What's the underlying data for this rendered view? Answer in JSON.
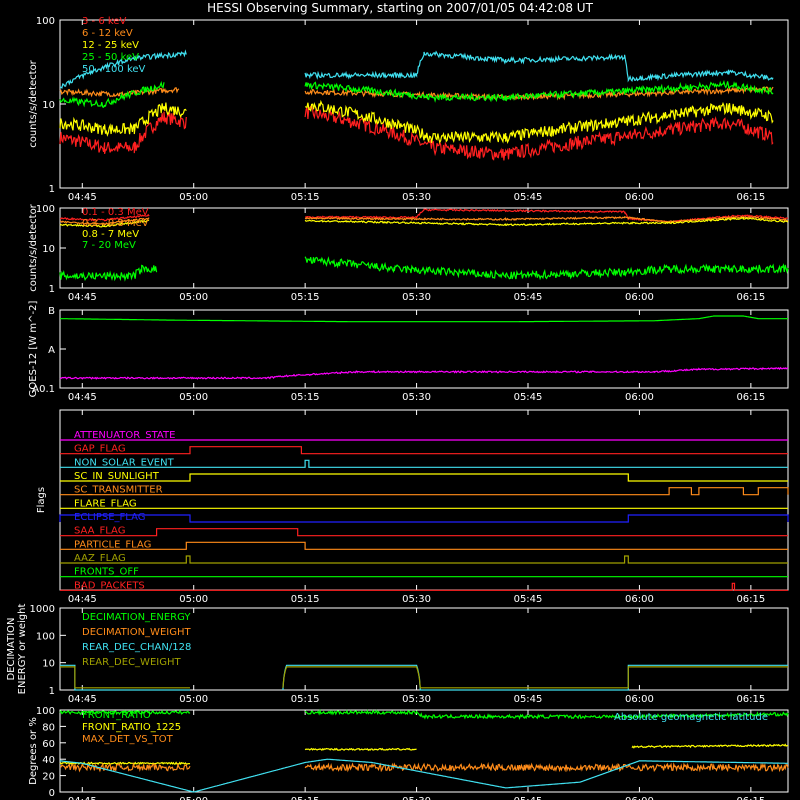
{
  "title": "HESSI Observing Summary, starting on 2007/01/05 04:42:08 UT",
  "time_ticks": [
    "04:45",
    "05:00",
    "05:15",
    "05:30",
    "05:45",
    "06:00",
    "06:15"
  ],
  "time_tick_minutes": [
    3,
    18,
    33,
    48,
    63,
    78,
    93
  ],
  "x_range_minutes": [
    0,
    98
  ],
  "colors": {
    "background": "#000000",
    "axis": "#ffffff",
    "red": "#ff2020",
    "orange": "#ff8c1a",
    "yellow": "#ffff00",
    "green": "#00ff00",
    "cyan": "#40e0f0",
    "magenta": "#ff00ff",
    "blue": "#2020ff",
    "olive": "#a0a000"
  },
  "chart_data": [
    {
      "id": "lowE",
      "type": "line",
      "ylabel": "counts/s/detector",
      "ylog": true,
      "yticks": [
        "1",
        "10",
        "100"
      ],
      "ylim": [
        1,
        100
      ],
      "legend_position": "top-left",
      "series": [
        {
          "name": "3 - 6 keV",
          "color": "#ff2020",
          "noise": 0.08,
          "points": [
            [
              0,
              4
            ],
            [
              6,
              3
            ],
            [
              10,
              3
            ],
            [
              14,
              7
            ],
            [
              17,
              6
            ],
            [
              17.5,
              null
            ],
            [
              32.5,
              null
            ],
            [
              33,
              8
            ],
            [
              50,
              3
            ],
            [
              60,
              2.5
            ],
            [
              75,
              4
            ],
            [
              90,
              6
            ],
            [
              96,
              4
            ]
          ]
        },
        {
          "name": "6 - 12 keV",
          "color": "#ff8c1a",
          "noise": 0.03,
          "points": [
            [
              0,
              14
            ],
            [
              8,
              13
            ],
            [
              16,
              15
            ],
            [
              17.5,
              null
            ],
            [
              32.5,
              null
            ],
            [
              33,
              14
            ],
            [
              60,
              12
            ],
            [
              75,
              13
            ],
            [
              96,
              15
            ]
          ]
        },
        {
          "name": "12 - 25 keV",
          "color": "#ffff00",
          "noise": 0.07,
          "points": [
            [
              0,
              6
            ],
            [
              6,
              5
            ],
            [
              10,
              5
            ],
            [
              14,
              9
            ],
            [
              17,
              8
            ],
            [
              17.5,
              null
            ],
            [
              32.5,
              null
            ],
            [
              33,
              10
            ],
            [
              50,
              4
            ],
            [
              60,
              4
            ],
            [
              75,
              6
            ],
            [
              90,
              9
            ],
            [
              96,
              7
            ]
          ]
        },
        {
          "name": "25 - 50 keV",
          "color": "#00ff00",
          "noise": 0.04,
          "points": [
            [
              0,
              11
            ],
            [
              6,
              10
            ],
            [
              14,
              17
            ],
            [
              17.5,
              null
            ],
            [
              32.5,
              null
            ],
            [
              33,
              17
            ],
            [
              50,
              12
            ],
            [
              60,
              12
            ],
            [
              75,
              14
            ],
            [
              90,
              17
            ],
            [
              96,
              14
            ]
          ]
        },
        {
          "name": "50 - 100 keV",
          "color": "#40e0f0",
          "noise": 0.03,
          "points": [
            [
              0,
              16
            ],
            [
              10,
              35
            ],
            [
              17,
              40
            ],
            [
              17.5,
              null
            ],
            [
              32.5,
              null
            ],
            [
              33,
              22
            ],
            [
              48,
              22
            ],
            [
              49,
              40
            ],
            [
              60,
              33
            ],
            [
              76,
              36
            ],
            [
              76.5,
              20
            ],
            [
              90,
              24
            ],
            [
              96,
              20
            ]
          ]
        }
      ]
    },
    {
      "id": "highE",
      "type": "line",
      "ylabel": "counts/s/detector",
      "ylog": true,
      "yticks": [
        "1",
        "10",
        "100"
      ],
      "ylim": [
        1,
        100
      ],
      "legend_position": "top-left",
      "series": [
        {
          "name": "0.1 - 0.3 MeV",
          "color": "#ff2020",
          "noise": 0.02,
          "points": [
            [
              0,
              55
            ],
            [
              6,
              50
            ],
            [
              12,
              65
            ],
            [
              17.5,
              null
            ],
            [
              32.5,
              null
            ],
            [
              33,
              60
            ],
            [
              48,
              58
            ],
            [
              49,
              90
            ],
            [
              76,
              80
            ],
            [
              76.5,
              55
            ],
            [
              82,
              45
            ],
            [
              92,
              65
            ],
            [
              98,
              55
            ]
          ]
        },
        {
          "name": "0.3 - 0.8 MeV",
          "color": "#ff8c1a",
          "noise": 0.02,
          "points": [
            [
              0,
              45
            ],
            [
              6,
              40
            ],
            [
              12,
              55
            ],
            [
              17.5,
              null
            ],
            [
              32.5,
              null
            ],
            [
              33,
              55
            ],
            [
              60,
              52
            ],
            [
              76,
              58
            ],
            [
              82,
              45
            ],
            [
              92,
              60
            ],
            [
              98,
              50
            ]
          ]
        },
        {
          "name": "0.8 - 7 MeV",
          "color": "#ffff00",
          "noise": 0.02,
          "points": [
            [
              0,
              38
            ],
            [
              6,
              35
            ],
            [
              12,
              48
            ],
            [
              17.5,
              null
            ],
            [
              32.5,
              null
            ],
            [
              33,
              48
            ],
            [
              60,
              38
            ],
            [
              76,
              42
            ],
            [
              82,
              42
            ],
            [
              92,
              55
            ],
            [
              98,
              45
            ]
          ]
        },
        {
          "name": "7 - 20 MeV",
          "color": "#00ff00",
          "noise": 0.1,
          "points": [
            [
              0,
              2
            ],
            [
              10,
              2
            ],
            [
              11,
              3
            ],
            [
              13,
              3
            ],
            [
              17.5,
              null
            ],
            [
              32.5,
              null
            ],
            [
              33,
              5
            ],
            [
              45,
              3
            ],
            [
              60,
              2
            ],
            [
              76,
              2.5
            ],
            [
              82,
              3
            ],
            [
              90,
              3
            ],
            [
              98,
              3
            ]
          ]
        }
      ]
    },
    {
      "id": "goes",
      "type": "line",
      "ylabel": "GOES-12 [W m^-2]",
      "ylog": true,
      "yticks": [
        "A0.1",
        "A",
        "B"
      ],
      "ytick_values": [
        1e-09,
        1e-08,
        1e-07
      ],
      "ylim": [
        1e-09,
        1e-07
      ],
      "series": [
        {
          "name": "",
          "color": "#00ff00",
          "noise": 0.0,
          "points": [
            [
              0,
              6e-08
            ],
            [
              15,
              5.5e-08
            ],
            [
              40,
              5e-08
            ],
            [
              60,
              5e-08
            ],
            [
              80,
              5.3e-08
            ],
            [
              86,
              6e-08
            ],
            [
              88,
              7e-08
            ],
            [
              92,
              7e-08
            ],
            [
              94,
              6e-08
            ],
            [
              98,
              6e-08
            ]
          ]
        },
        {
          "name": "",
          "color": "#ff00ff",
          "noise": 0.02,
          "points": [
            [
              0,
              1.8e-09
            ],
            [
              28,
              1.8e-09
            ],
            [
              30,
              2e-09
            ],
            [
              40,
              2.6e-09
            ],
            [
              80,
              2.6e-09
            ],
            [
              86,
              3e-09
            ],
            [
              98,
              3.2e-09
            ]
          ]
        }
      ]
    },
    {
      "id": "flags",
      "type": "table",
      "ylabel": "Flags",
      "rows": [
        {
          "name": "ATTENUATOR_STATE",
          "color": "#ff00ff",
          "high": []
        },
        {
          "name": "GAP_FLAG",
          "color": "#ff2020",
          "high": [
            [
              17.5,
              32.5
            ]
          ]
        },
        {
          "name": "NON_SOLAR_EVENT",
          "color": "#40e0f0",
          "high": [
            [
              33,
              33.5
            ]
          ]
        },
        {
          "name": "SC_IN_SUNLIGHT",
          "color": "#ffff00",
          "high": [
            [
              17.5,
              76.5
            ]
          ]
        },
        {
          "name": "SC_TRANSMITTER",
          "color": "#ff8c1a",
          "high": [
            [
              82,
              85
            ],
            [
              86,
              92
            ],
            [
              94,
              98
            ]
          ]
        },
        {
          "name": "FLARE_FLAG",
          "color": "#ffff00",
          "high": []
        },
        {
          "name": "ECLIPSE_FLAG",
          "color": "#2020ff",
          "high": [
            [
              0,
              17.5
            ],
            [
              76.5,
              98
            ]
          ]
        },
        {
          "name": "SAA_FLAG",
          "color": "#ff2020",
          "high": [
            [
              13,
              32
            ]
          ]
        },
        {
          "name": "PARTICLE_FLAG",
          "color": "#ff8c1a",
          "high": [
            [
              17,
              33
            ]
          ]
        },
        {
          "name": "AAZ_FLAG",
          "color": "#a0a000",
          "high": [
            [
              17,
              17.5
            ],
            [
              76,
              76.5
            ]
          ]
        },
        {
          "name": "FRONTS_OFF",
          "color": "#00ff00",
          "high": []
        },
        {
          "name": "BAD_PACKETS",
          "color": "#ff2020",
          "high": [
            [
              90.5,
              90.8
            ]
          ]
        }
      ]
    },
    {
      "id": "decim",
      "type": "line",
      "ylabel": "DECIMATION ENERGY or weight",
      "ylog": true,
      "yticks": [
        "1",
        "10",
        "100",
        "1000"
      ],
      "ylim": [
        1,
        1000
      ],
      "legend_position": "top-left",
      "series": [
        {
          "name": "DECIMATION_ENERGY",
          "color": "#00ff00",
          "noise": 0,
          "points": []
        },
        {
          "name": "DECIMATION_WEIGHT",
          "color": "#ff8c1a",
          "noise": 0,
          "points": []
        },
        {
          "name": "REAR_DEC_CHAN/128",
          "color": "#40e0f0",
          "noise": 0,
          "points": [
            [
              0,
              8
            ],
            [
              2,
              8
            ],
            [
              2,
              1
            ],
            [
              17.5,
              1
            ],
            [
              17.5,
              null
            ],
            [
              30,
              null
            ],
            [
              30,
              1
            ],
            [
              30.5,
              8
            ],
            [
              48,
              8
            ],
            [
              48.5,
              1
            ],
            [
              76.5,
              1
            ],
            [
              76.5,
              8
            ],
            [
              98,
              8
            ]
          ]
        },
        {
          "name": "REAR_DEC_WEIGHT",
          "color": "#a0a000",
          "noise": 0,
          "points": [
            [
              0,
              7
            ],
            [
              2,
              7
            ],
            [
              2,
              1.2
            ],
            [
              17.5,
              1.2
            ],
            [
              17.5,
              null
            ],
            [
              30,
              null
            ],
            [
              30,
              1.2
            ],
            [
              30.5,
              7
            ],
            [
              48,
              7
            ],
            [
              48.5,
              1.2
            ],
            [
              76.5,
              1.2
            ],
            [
              76.5,
              7
            ],
            [
              98,
              7
            ]
          ]
        }
      ]
    },
    {
      "id": "ratios",
      "type": "line",
      "ylabel": "Degrees or %",
      "ylog": false,
      "yticks": [
        "0",
        "20",
        "40",
        "60",
        "80",
        "100"
      ],
      "ylim": [
        0,
        100
      ],
      "legend_position": "top-left",
      "right_legend": "Absolute geomagnetic latitude",
      "series": [
        {
          "name": "FRONT_RATIO",
          "color": "#00ff00",
          "noise": 2,
          "points": [
            [
              0,
              97
            ],
            [
              17.5,
              97
            ],
            [
              17.5,
              null
            ],
            [
              32.5,
              null
            ],
            [
              33,
              97
            ],
            [
              48,
              97
            ],
            [
              49,
              92
            ],
            [
              76,
              92
            ],
            [
              98,
              95
            ]
          ]
        },
        {
          "name": "FRONT_RATIO_1225",
          "color": "#ffff00",
          "noise": 1,
          "points": [
            [
              0,
              35
            ],
            [
              17.5,
              35
            ],
            [
              17.5,
              null
            ],
            [
              32.5,
              null
            ],
            [
              33,
              52
            ],
            [
              48,
              52
            ],
            [
              48.5,
              null
            ],
            [
              76.5,
              null
            ],
            [
              77,
              55
            ],
            [
              98,
              57
            ]
          ]
        },
        {
          "name": "MAX_DET_VS_TOT",
          "color": "#ff8c1a",
          "noise": 4,
          "points": [
            [
              0,
              30
            ],
            [
              17.5,
              30
            ],
            [
              17.5,
              null
            ],
            [
              32.5,
              null
            ],
            [
              33,
              30
            ],
            [
              98,
              30
            ]
          ]
        },
        {
          "name": "Absolute geomagnetic latitude",
          "color": "#40e0f0",
          "noise": 0,
          "points": [
            [
              0,
              38
            ],
            [
              3,
              35
            ],
            [
              18,
              0
            ],
            [
              33,
              36
            ],
            [
              36,
              40
            ],
            [
              42,
              36
            ],
            [
              60,
              5
            ],
            [
              70,
              12
            ],
            [
              78,
              38
            ],
            [
              98,
              35
            ]
          ]
        }
      ]
    }
  ]
}
